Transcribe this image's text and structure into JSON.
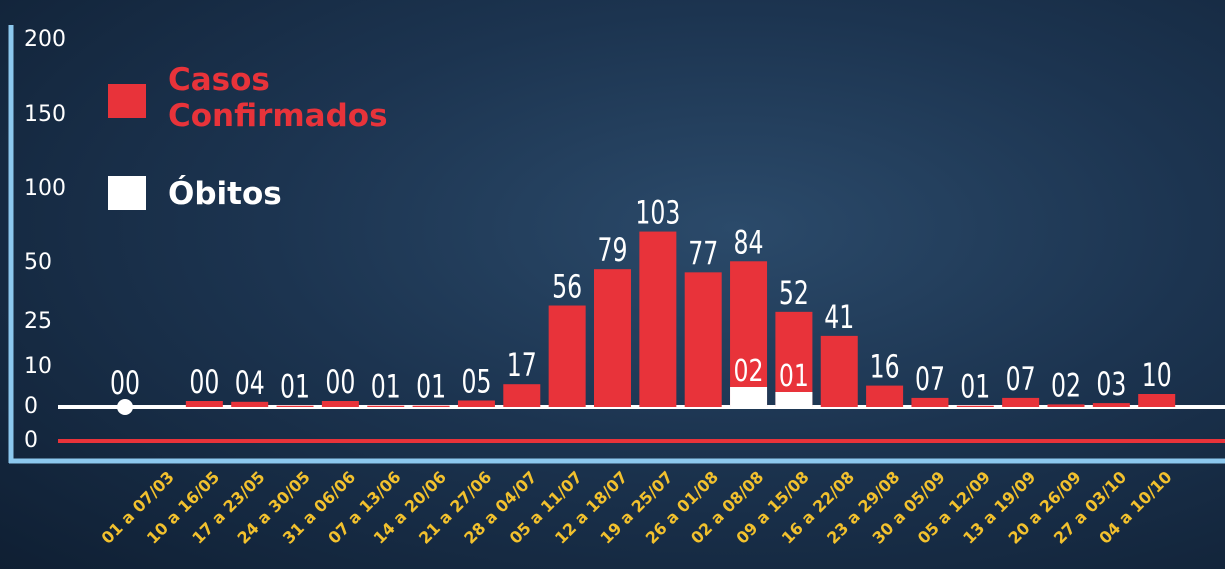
{
  "chart_data": {
    "type": "bar",
    "categories": [
      "01 a 07/03",
      "10 a 16/05",
      "17 a 23/05",
      "24 a 30/05",
      "31 a 06/06",
      "07 a 13/06",
      "14 a 20/06",
      "21 a 27/06",
      "28 a 04/07",
      "05 a 11/07",
      "12 a 18/07",
      "19 a 25/07",
      "26 a 01/08",
      "02 a 08/08",
      "09 a 15/08",
      "16 a 22/08",
      "23 a 29/08",
      "30 a 05/09",
      "05 a 12/09",
      "13 a 19/09",
      "20 a 26/09",
      "27 a 03/10",
      "04 a 10/10"
    ],
    "series": [
      {
        "name": "Casos Confirmados",
        "values": [
          0,
          0,
          4,
          1,
          0,
          1,
          1,
          5,
          17,
          56,
          79,
          103,
          77,
          84,
          52,
          41,
          16,
          7,
          1,
          7,
          2,
          3,
          10
        ],
        "labels": [
          "00",
          "00",
          "04",
          "01",
          "00",
          "01",
          "01",
          "05",
          "17",
          "56",
          "79",
          "103",
          "77",
          "84",
          "52",
          "41",
          "16",
          "07",
          "01",
          "07",
          "02",
          "03",
          "10"
        ]
      },
      {
        "name": "Óbitos",
        "values": [
          0,
          0,
          0,
          0,
          0,
          0,
          0,
          0,
          0,
          0,
          0,
          0,
          0,
          2,
          1,
          0,
          0,
          0,
          0,
          0,
          0,
          0,
          0
        ],
        "labels": [
          "",
          "",
          "",
          "",
          "",
          "",
          "",
          "",
          "",
          "",
          "",
          "",
          "",
          "02",
          "01",
          "",
          "",
          "",
          "",
          "",
          "",
          "",
          ""
        ]
      }
    ],
    "yticks": [
      "200",
      "150",
      "100",
      "50",
      "25",
      "10",
      "0",
      "0"
    ],
    "colors": {
      "casos": "#e8333a",
      "obitos": "#ffffff",
      "axis": "#8cc8ee",
      "xlabels": "#f2c12e"
    }
  },
  "legend": {
    "casos": "Casos Confirmados",
    "obitos": "Óbitos"
  }
}
